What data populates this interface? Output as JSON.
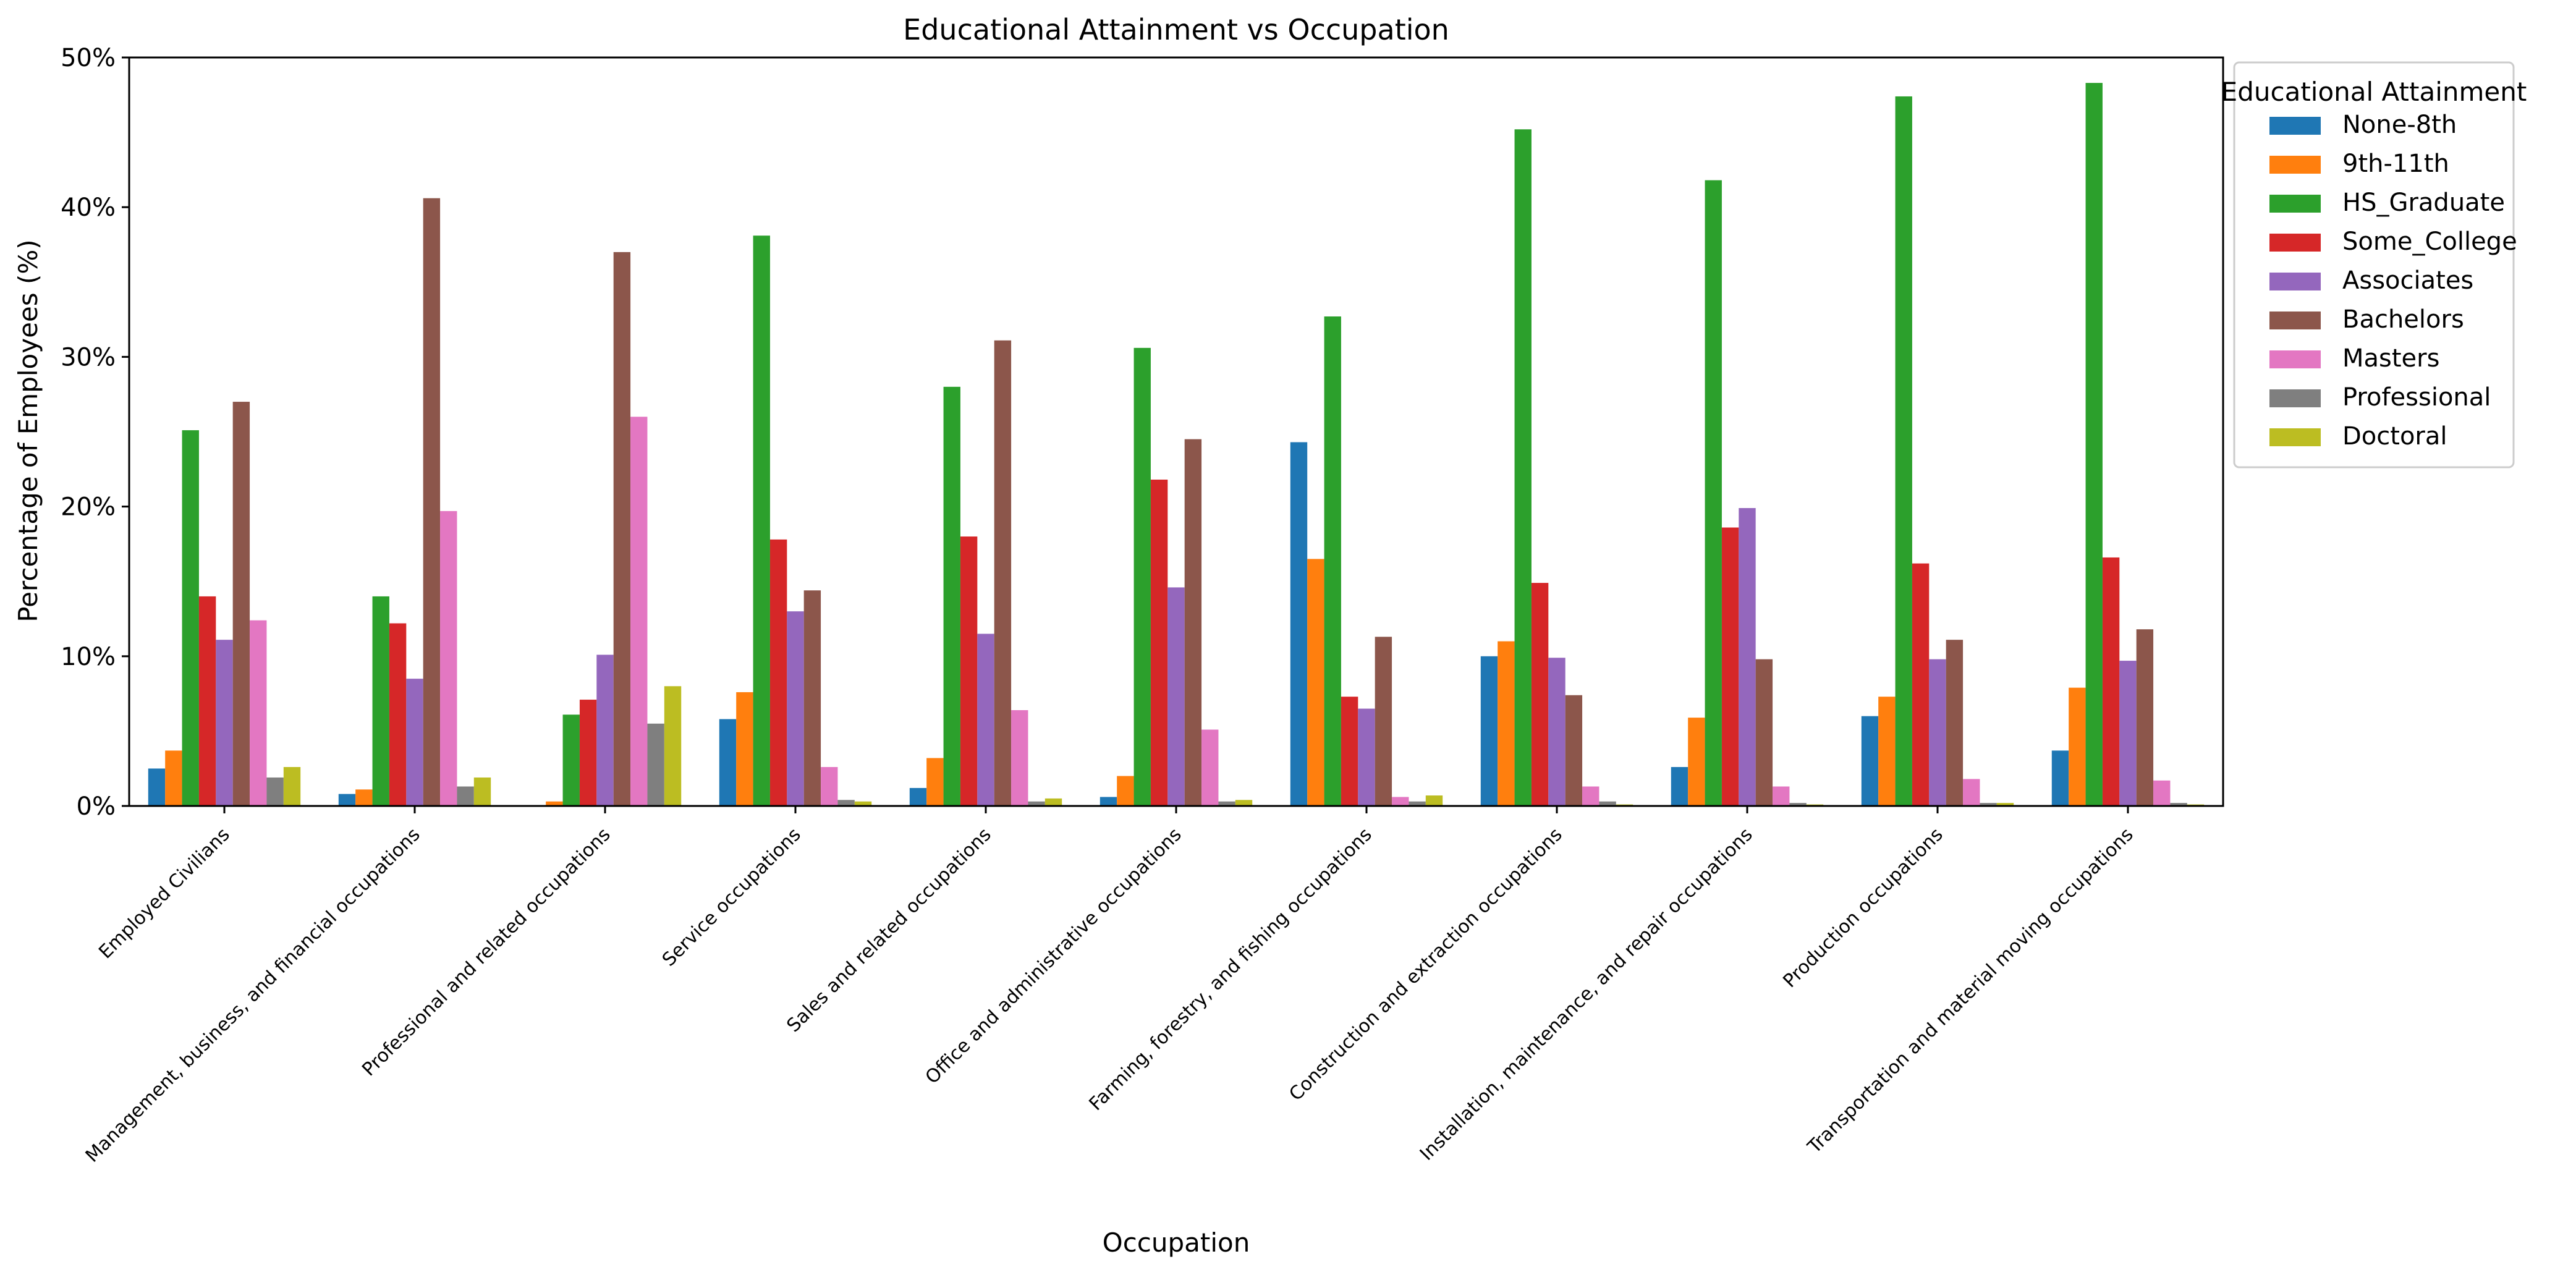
{
  "chart_data": {
    "type": "bar",
    "title": "Educational Attainment vs Occupation",
    "xlabel": "Occupation",
    "ylabel": "Percentage of Employees (%)",
    "ylim": [
      0,
      50
    ],
    "ytick_values": [
      0,
      10,
      20,
      30,
      40,
      50
    ],
    "ytick_labels": [
      "0%",
      "10%",
      "20%",
      "30%",
      "40%",
      "50%"
    ],
    "grid": false,
    "legend": {
      "title": "Educational Attainment",
      "placement": "outside-right-top"
    },
    "categories": [
      "Employed Civilians",
      "Management, business, and financial occupations",
      "Professional and related occupations",
      "Service occupations",
      "Sales and related occupations",
      "Office and administrative occupations",
      "Farming, forestry, and fishing occupations",
      "Construction and extraction occupations",
      "Installation, maintenance, and repair occupations",
      "Production occupations",
      "Transportation and material moving occupations"
    ],
    "series": [
      {
        "name": "None-8th",
        "color": "#1f77b4",
        "values": [
          2.5,
          0.8,
          0.0,
          5.8,
          1.2,
          0.6,
          24.3,
          10.0,
          2.6,
          6.0,
          3.7
        ]
      },
      {
        "name": "9th-11th",
        "color": "#ff7f0e",
        "values": [
          3.7,
          1.1,
          0.3,
          7.6,
          3.2,
          2.0,
          16.5,
          11.0,
          5.9,
          7.3,
          7.9
        ]
      },
      {
        "name": "HS_Graduate",
        "color": "#2ca02c",
        "values": [
          25.1,
          14.0,
          6.1,
          38.1,
          28.0,
          30.6,
          32.7,
          45.2,
          41.8,
          47.4,
          48.3
        ]
      },
      {
        "name": "Some_College",
        "color": "#d62728",
        "values": [
          14.0,
          12.2,
          7.1,
          17.8,
          18.0,
          21.8,
          7.3,
          14.9,
          18.6,
          16.2,
          16.6
        ]
      },
      {
        "name": "Associates",
        "color": "#9467bd",
        "values": [
          11.1,
          8.5,
          10.1,
          13.0,
          11.5,
          14.6,
          6.5,
          9.9,
          19.9,
          9.8,
          9.7
        ]
      },
      {
        "name": "Bachelors",
        "color": "#8c564b",
        "values": [
          27.0,
          40.6,
          37.0,
          14.4,
          31.1,
          24.5,
          11.3,
          7.4,
          9.8,
          11.1,
          11.8
        ]
      },
      {
        "name": "Masters",
        "color": "#e377c2",
        "values": [
          12.4,
          19.7,
          26.0,
          2.6,
          6.4,
          5.1,
          0.6,
          1.3,
          1.3,
          1.8,
          1.7
        ]
      },
      {
        "name": "Professional",
        "color": "#7f7f7f",
        "values": [
          1.9,
          1.3,
          5.5,
          0.4,
          0.3,
          0.3,
          0.3,
          0.3,
          0.2,
          0.2,
          0.2
        ]
      },
      {
        "name": "Doctoral",
        "color": "#bcbd22",
        "values": [
          2.6,
          1.9,
          8.0,
          0.3,
          0.5,
          0.4,
          0.7,
          0.1,
          0.1,
          0.2,
          0.1
        ]
      }
    ]
  }
}
